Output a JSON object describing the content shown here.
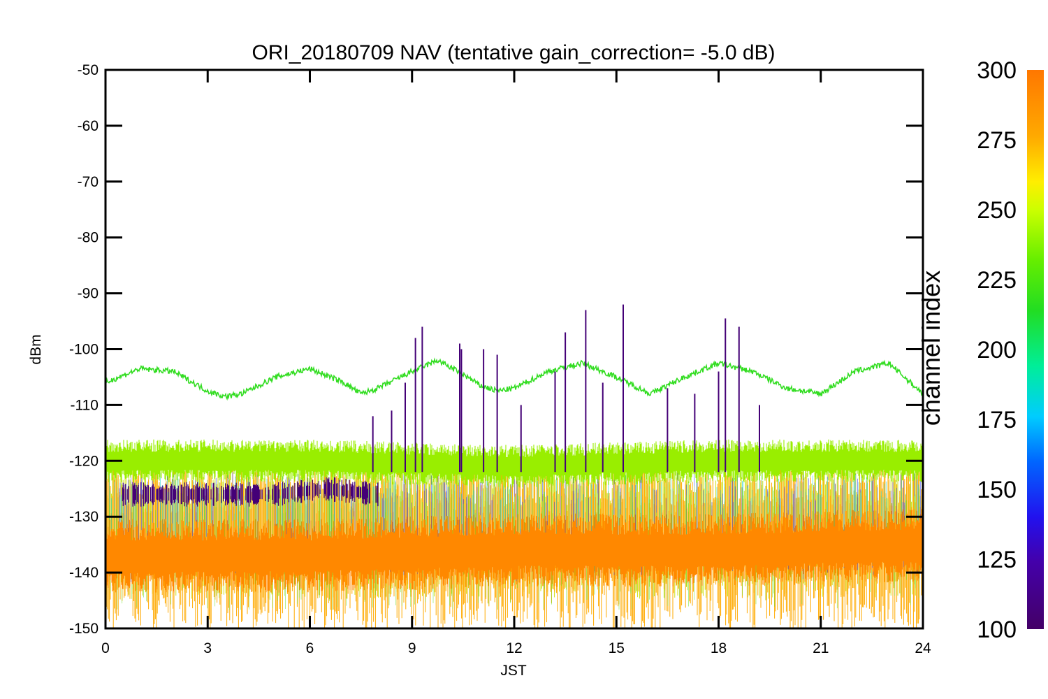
{
  "chart_data": {
    "type": "line",
    "title": "ORI_20180709 NAV (tentative gain_correction= -5.0 dB)",
    "xlabel": "JST",
    "ylabel": "dBm",
    "xlim": [
      0,
      24
    ],
    "ylim": [
      -150,
      -50
    ],
    "x_ticks": [
      "0",
      "3",
      "6",
      "9",
      "12",
      "15",
      "18",
      "21",
      "24"
    ],
    "y_ticks": [
      "-50",
      "-60",
      "-70",
      "-80",
      "-90",
      "-100",
      "-110",
      "-120",
      "-130",
      "-140",
      "-150"
    ],
    "colorbar": {
      "label": "channel index",
      "range": [
        100,
        300
      ],
      "ticks": [
        "300",
        "275",
        "250",
        "225",
        "200",
        "175",
        "150",
        "125",
        "100"
      ]
    },
    "series": [
      {
        "color": "#33dd22",
        "x": [
          0,
          1,
          2,
          3,
          3.5,
          4,
          5,
          6,
          7,
          7.5,
          8,
          9,
          9.75,
          10.5,
          11,
          11.5,
          12,
          13,
          14,
          15,
          16,
          17,
          18,
          19,
          20,
          21,
          22,
          23,
          24
        ],
        "values": [
          -106,
          -103.5,
          -104,
          -107.5,
          -108.5,
          -108,
          -105,
          -103.5,
          -106,
          -108,
          -107,
          -104,
          -102,
          -104.5,
          -106.5,
          -107.5,
          -107,
          -104,
          -102.5,
          -105,
          -108,
          -105,
          -102.5,
          -104,
          -107,
          -108,
          -104,
          -102.5,
          -108
        ]
      },
      {
        "color": "#99ee00",
        "x": [
          0,
          6,
          12,
          18,
          24
        ],
        "values": [
          -120,
          -120,
          -121,
          -120,
          -120
        ]
      },
      {
        "color": "#ff8800",
        "x": [
          0,
          6,
          12,
          18,
          24
        ],
        "values": [
          -137,
          -137,
          -136,
          -136,
          -135
        ]
      },
      {
        "color": "#440077",
        "x": [
          0.5,
          2,
          3.5,
          5,
          6.5,
          8
        ],
        "values": [
          -126,
          -126,
          -126,
          -126,
          -125,
          -126
        ]
      },
      {
        "color": "#440077",
        "x": [
          7.85,
          8.4,
          8.8,
          9.1,
          9.3,
          10.4,
          10.45,
          11.1,
          11.5,
          12.2,
          13.2,
          13.5,
          14.1,
          14.6,
          15.2,
          16.5,
          17.3,
          18.0,
          18.2,
          18.6,
          19.2
        ],
        "values": [
          -112,
          -111,
          -106,
          -98,
          -96,
          -99,
          -100,
          -100,
          -101,
          -110,
          -104,
          -97,
          -93,
          -106,
          -92,
          -107,
          -108,
          -104,
          -94.5,
          -96,
          -110
        ]
      }
    ]
  }
}
